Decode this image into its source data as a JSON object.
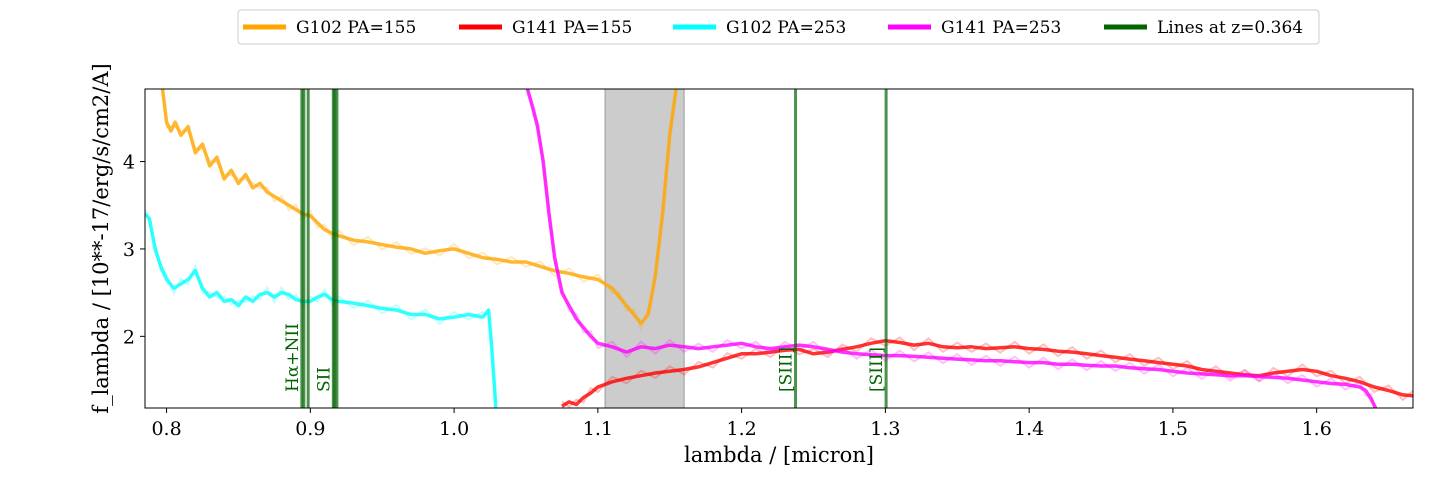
{
  "chart_data": {
    "type": "line",
    "title": "",
    "xlabel": "lambda / [micron]",
    "ylabel": "f_lambda / [10**-17/erg/s/cm2/A]",
    "xlim": [
      0.785,
      1.667
    ],
    "ylim": [
      1.18,
      4.83
    ],
    "xticks": [
      0.8,
      0.9,
      1.0,
      1.1,
      1.2,
      1.3,
      1.4,
      1.5,
      1.6
    ],
    "xtick_labels": [
      "0.8",
      "0.9",
      "1.0",
      "1.1",
      "1.2",
      "1.3",
      "1.4",
      "1.5",
      "1.6"
    ],
    "yticks": [
      2,
      3,
      4
    ],
    "ytick_labels": [
      "2",
      "3",
      "4"
    ],
    "grid": false,
    "legend_position": "top-center, above plot",
    "masked_region": {
      "x": [
        1.105,
        1.16
      ],
      "color": "#cccccc"
    },
    "series": [
      {
        "name": "G102 PA=155",
        "color": "#ffa500",
        "x": [
          0.797,
          0.8,
          0.803,
          0.806,
          0.81,
          0.815,
          0.82,
          0.825,
          0.83,
          0.835,
          0.84,
          0.845,
          0.85,
          0.855,
          0.86,
          0.865,
          0.87,
          0.875,
          0.88,
          0.885,
          0.89,
          0.895,
          0.9,
          0.905,
          0.91,
          0.915,
          0.92,
          0.93,
          0.94,
          0.95,
          0.96,
          0.97,
          0.98,
          0.99,
          1.0,
          1.01,
          1.02,
          1.03,
          1.04,
          1.05,
          1.06,
          1.07,
          1.08,
          1.09,
          1.1,
          1.11,
          1.115,
          1.12,
          1.125,
          1.13,
          1.135,
          1.14,
          1.145,
          1.15,
          1.155
        ],
        "y": [
          4.85,
          4.45,
          4.35,
          4.45,
          4.3,
          4.4,
          4.1,
          4.2,
          3.95,
          4.05,
          3.8,
          3.9,
          3.75,
          3.85,
          3.7,
          3.75,
          3.65,
          3.6,
          3.55,
          3.5,
          3.45,
          3.4,
          3.38,
          3.3,
          3.22,
          3.18,
          3.15,
          3.1,
          3.08,
          3.05,
          3.02,
          3.0,
          2.95,
          2.98,
          3.0,
          2.95,
          2.9,
          2.88,
          2.85,
          2.85,
          2.8,
          2.75,
          2.72,
          2.68,
          2.65,
          2.55,
          2.45,
          2.35,
          2.25,
          2.15,
          2.25,
          2.7,
          3.4,
          4.3,
          4.9
        ]
      },
      {
        "name": "G141 PA=155",
        "color": "#ff0000",
        "x": [
          1.075,
          1.08,
          1.085,
          1.09,
          1.095,
          1.1,
          1.11,
          1.12,
          1.13,
          1.14,
          1.15,
          1.16,
          1.17,
          1.18,
          1.19,
          1.2,
          1.21,
          1.22,
          1.23,
          1.24,
          1.25,
          1.26,
          1.27,
          1.28,
          1.29,
          1.3,
          1.31,
          1.32,
          1.33,
          1.34,
          1.35,
          1.36,
          1.37,
          1.38,
          1.39,
          1.4,
          1.41,
          1.42,
          1.43,
          1.44,
          1.45,
          1.46,
          1.47,
          1.48,
          1.49,
          1.5,
          1.51,
          1.52,
          1.53,
          1.54,
          1.55,
          1.56,
          1.57,
          1.58,
          1.59,
          1.6,
          1.61,
          1.62,
          1.63,
          1.64,
          1.65,
          1.66,
          1.667
        ],
        "y": [
          1.2,
          1.25,
          1.22,
          1.3,
          1.35,
          1.42,
          1.48,
          1.52,
          1.55,
          1.58,
          1.6,
          1.62,
          1.65,
          1.7,
          1.75,
          1.8,
          1.8,
          1.82,
          1.84,
          1.85,
          1.8,
          1.82,
          1.85,
          1.88,
          1.92,
          1.95,
          1.93,
          1.9,
          1.92,
          1.88,
          1.87,
          1.88,
          1.86,
          1.87,
          1.88,
          1.86,
          1.85,
          1.83,
          1.82,
          1.8,
          1.78,
          1.76,
          1.74,
          1.72,
          1.7,
          1.68,
          1.66,
          1.62,
          1.6,
          1.58,
          1.56,
          1.55,
          1.58,
          1.6,
          1.62,
          1.6,
          1.55,
          1.52,
          1.48,
          1.42,
          1.38,
          1.33,
          1.32
        ]
      },
      {
        "name": "G102 PA=253",
        "color": "#00ffff",
        "x": [
          0.785,
          0.788,
          0.792,
          0.796,
          0.8,
          0.805,
          0.81,
          0.815,
          0.82,
          0.825,
          0.83,
          0.835,
          0.84,
          0.845,
          0.85,
          0.855,
          0.86,
          0.865,
          0.87,
          0.875,
          0.88,
          0.885,
          0.89,
          0.895,
          0.9,
          0.905,
          0.91,
          0.915,
          0.92,
          0.93,
          0.94,
          0.95,
          0.96,
          0.97,
          0.98,
          0.99,
          1.0,
          1.01,
          1.02,
          1.024,
          1.026,
          1.028,
          1.029
        ],
        "y": [
          3.4,
          3.35,
          3.0,
          2.8,
          2.65,
          2.55,
          2.6,
          2.65,
          2.75,
          2.55,
          2.45,
          2.5,
          2.4,
          2.42,
          2.35,
          2.45,
          2.4,
          2.48,
          2.5,
          2.45,
          2.5,
          2.48,
          2.42,
          2.4,
          2.4,
          2.45,
          2.48,
          2.42,
          2.4,
          2.38,
          2.35,
          2.32,
          2.3,
          2.25,
          2.25,
          2.2,
          2.22,
          2.25,
          2.22,
          2.3,
          1.9,
          1.45,
          1.18
        ]
      },
      {
        "name": "G141 PA=253",
        "color": "#ff00ff",
        "x": [
          1.051,
          1.055,
          1.058,
          1.062,
          1.066,
          1.07,
          1.075,
          1.08,
          1.085,
          1.09,
          1.095,
          1.1,
          1.11,
          1.12,
          1.13,
          1.14,
          1.15,
          1.16,
          1.17,
          1.18,
          1.19,
          1.2,
          1.21,
          1.22,
          1.23,
          1.24,
          1.25,
          1.26,
          1.27,
          1.28,
          1.29,
          1.3,
          1.31,
          1.32,
          1.33,
          1.34,
          1.35,
          1.36,
          1.37,
          1.38,
          1.39,
          1.4,
          1.41,
          1.42,
          1.43,
          1.44,
          1.45,
          1.46,
          1.47,
          1.48,
          1.49,
          1.5,
          1.51,
          1.52,
          1.53,
          1.54,
          1.55,
          1.56,
          1.57,
          1.58,
          1.59,
          1.6,
          1.61,
          1.62,
          1.63,
          1.634,
          1.638,
          1.641
        ],
        "y": [
          4.83,
          4.6,
          4.4,
          4.0,
          3.4,
          2.9,
          2.5,
          2.35,
          2.2,
          2.1,
          2.0,
          1.92,
          1.88,
          1.82,
          1.88,
          1.86,
          1.9,
          1.88,
          1.86,
          1.88,
          1.9,
          1.92,
          1.88,
          1.86,
          1.88,
          1.9,
          1.88,
          1.85,
          1.82,
          1.8,
          1.79,
          1.78,
          1.78,
          1.77,
          1.76,
          1.75,
          1.74,
          1.73,
          1.72,
          1.72,
          1.71,
          1.7,
          1.7,
          1.68,
          1.68,
          1.67,
          1.66,
          1.66,
          1.64,
          1.63,
          1.62,
          1.6,
          1.58,
          1.57,
          1.56,
          1.55,
          1.55,
          1.54,
          1.53,
          1.52,
          1.5,
          1.48,
          1.46,
          1.45,
          1.42,
          1.38,
          1.28,
          1.18
        ]
      }
    ],
    "line_markers": {
      "legend_name": "Lines at z=0.364",
      "color": "#006400",
      "lines": [
        {
          "x": 0.8941,
          "label": "Hα+NII"
        },
        {
          "x": 0.8955,
          "label": ""
        },
        {
          "x": 0.8985,
          "label": ""
        },
        {
          "x": 0.916,
          "label": "SII"
        },
        {
          "x": 0.917,
          "label": ""
        },
        {
          "x": 0.9185,
          "label": ""
        },
        {
          "x": 1.2375,
          "label": "[SIII]"
        },
        {
          "x": 1.3005,
          "label": "[SIII]"
        }
      ]
    }
  }
}
